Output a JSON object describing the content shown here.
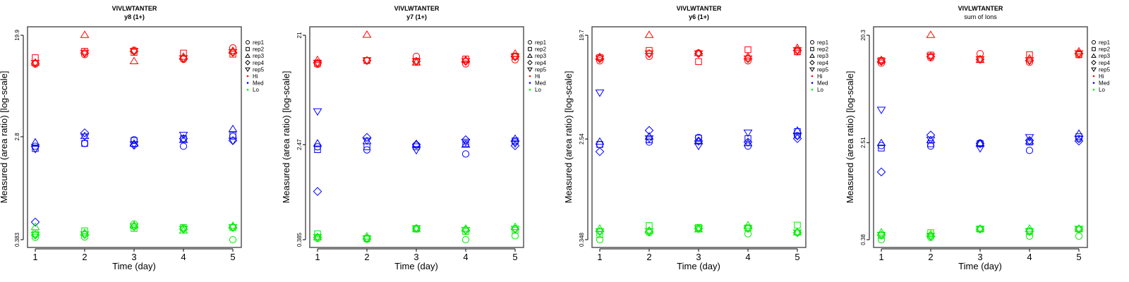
{
  "colors": {
    "Hi": "#ff0000",
    "Med": "#0000ff",
    "Lo": "#00ee00",
    "axis": "#000000",
    "box": "#555555"
  },
  "legend": {
    "reps": [
      "rep1",
      "rep2",
      "rep3",
      "rep4",
      "rep5"
    ],
    "levels": [
      "Hi",
      "Med",
      "Lo"
    ],
    "placement": "right"
  },
  "chart_data": [
    {
      "type": "scatter",
      "title": "VIVLWTANTER",
      "subtitle": "y8 (1+)",
      "xlabel": "Time (day)",
      "ylabel": "Measured (area ratio) [log-scale]",
      "yscale": "log",
      "x": [
        1,
        2,
        3,
        4,
        5
      ],
      "x_ticks": [
        "1",
        "2",
        "3",
        "4",
        "5"
      ],
      "y_ticks": [
        "0.383",
        "2.8",
        "19.9"
      ],
      "ylim": [
        0.383,
        19.9
      ],
      "series": {
        "Hi": {
          "rep1": [
            11.4,
            13.7,
            14.9,
            12.5,
            15.6
          ],
          "rep2": [
            12.9,
            14.6,
            14.3,
            14.1,
            13.8
          ],
          "rep3": [
            11.8,
            20.1,
            12.1,
            13.2,
            14.8
          ],
          "rep4": [
            11.6,
            14.1,
            14.6,
            12.7,
            14.3
          ],
          "rep5": [
            11.6,
            14.1,
            14.6,
            12.7,
            14.3
          ]
        },
        "Med": {
          "rep1": [
            2.33,
            2.46,
            2.64,
            2.33,
            2.82
          ],
          "rep2": [
            2.23,
            2.46,
            2.6,
            2.7,
            2.89
          ],
          "rep3": [
            2.52,
            2.85,
            2.46,
            2.64,
            3.26
          ],
          "rep4": [
            0.538,
            3.02,
            2.38,
            2.7,
            2.6
          ],
          "rep5": [
            2.2,
            2.8,
            2.41,
            2.89,
            2.58
          ]
        },
        "Lo": {
          "rep1": [
            0.401,
            0.404,
            0.519,
            0.476,
            0.383
          ],
          "rep2": [
            0.429,
            0.455,
            0.476,
            0.485,
            0.485
          ],
          "rep3": [
            0.492,
            0.439,
            0.508,
            0.459,
            0.503
          ],
          "rep4": [
            0.419,
            0.423,
            0.492,
            0.47,
            0.485
          ],
          "rep5": [
            0.419,
            0.423,
            0.492,
            0.47,
            0.485
          ]
        }
      }
    },
    {
      "type": "scatter",
      "title": "VIVLWTANTER",
      "subtitle": "y7 (1+)",
      "xlabel": "Time (day)",
      "ylabel": "Measured (area ratio) [log-scale]",
      "yscale": "log",
      "x": [
        1,
        2,
        3,
        4,
        5
      ],
      "x_ticks": [
        "1",
        "2",
        "3",
        "4",
        "5"
      ],
      "y_ticks": [
        "0.385",
        "2.47",
        "21"
      ],
      "ylim": [
        0.385,
        21
      ],
      "series": {
        "Hi": {
          "rep1": [
            11.9,
            12.8,
            13.9,
            12.0,
            13.0
          ],
          "rep2": [
            12.1,
            12.8,
            12.4,
            13.2,
            13.9
          ],
          "rep3": [
            13.0,
            21.3,
            12.4,
            13.0,
            14.7
          ],
          "rep4": [
            12.2,
            12.8,
            12.6,
            12.6,
            13.8
          ],
          "rep5": [
            12.2,
            12.8,
            12.6,
            12.6,
            13.8
          ]
        },
        "Med": {
          "rep1": [
            2.37,
            2.23,
            2.45,
            2.06,
            2.6
          ],
          "rep2": [
            2.24,
            2.37,
            2.37,
            2.52,
            2.66
          ],
          "rep3": [
            2.54,
            2.66,
            2.52,
            2.48,
            2.78
          ],
          "rep4": [
            0.989,
            2.85,
            2.48,
            2.72,
            2.42
          ],
          "rep5": [
            4.72,
            2.66,
            2.21,
            2.6,
            2.52
          ]
        },
        "Lo": {
          "rep1": [
            0.394,
            0.389,
            0.48,
            0.385,
            0.416
          ],
          "rep2": [
            0.432,
            0.394,
            0.474,
            0.452,
            0.463
          ],
          "rep3": [
            0.407,
            0.412,
            0.48,
            0.48,
            0.496
          ],
          "rep4": [
            0.403,
            0.394,
            0.48,
            0.463,
            0.474
          ],
          "rep5": [
            0.403,
            0.394,
            0.48,
            0.463,
            0.474
          ]
        }
      }
    },
    {
      "type": "scatter",
      "title": "VIVLWTANTER",
      "subtitle": "y6 (1+)",
      "xlabel": "Time (day)",
      "ylabel": "Measured (area ratio) [log-scale]",
      "yscale": "log",
      "x": [
        1,
        2,
        3,
        4,
        5
      ],
      "x_ticks": [
        "1",
        "2",
        "3",
        "4",
        "5"
      ],
      "y_ticks": [
        "0.348",
        "2.54",
        "19.7"
      ],
      "ylim": [
        0.348,
        19.7
      ],
      "series": {
        "Hi": {
          "rep1": [
            11.9,
            13.0,
            13.9,
            11.9,
            14.2
          ],
          "rep2": [
            12.7,
            14.6,
            11.7,
            14.8,
            14.2
          ],
          "rep3": [
            12.9,
            19.9,
            13.9,
            13.0,
            15.4
          ],
          "rep4": [
            12.4,
            13.7,
            13.7,
            12.4,
            14.6
          ],
          "rep5": [
            12.4,
            13.7,
            13.7,
            12.4,
            14.6
          ]
        },
        "Med": {
          "rep1": [
            2.28,
            2.39,
            2.62,
            2.21,
            2.71
          ],
          "rep2": [
            2.28,
            2.5,
            2.58,
            2.56,
            2.94
          ],
          "rep3": [
            2.42,
            2.68,
            2.44,
            2.35,
            3.01
          ],
          "rep4": [
            1.98,
            3.01,
            2.44,
            2.39,
            2.56
          ],
          "rep5": [
            6.32,
            2.56,
            2.21,
            2.87,
            2.68
          ]
        },
        "Lo": {
          "rep1": [
            0.348,
            0.4,
            0.429,
            0.391,
            0.4
          ],
          "rep2": [
            0.385,
            0.46,
            0.443,
            0.439,
            0.464
          ],
          "rep3": [
            0.435,
            0.419,
            0.429,
            0.464,
            0.404
          ],
          "rep4": [
            0.409,
            0.409,
            0.435,
            0.435,
            0.4
          ],
          "rep5": [
            0.409,
            0.409,
            0.435,
            0.435,
            0.4
          ]
        }
      }
    },
    {
      "type": "scatter",
      "title": "VIVLWTANTER",
      "subtitle": "sum of Ions",
      "xlabel": "Time (day)",
      "ylabel": "Measured (area ratio) [log-scale]",
      "yscale": "log",
      "x": [
        1,
        2,
        3,
        4,
        5
      ],
      "x_ticks": [
        "1",
        "2",
        "3",
        "4",
        "5"
      ],
      "y_ticks": [
        "0.38",
        "2.51",
        "20.3"
      ],
      "ylim": [
        0.38,
        20.3
      ],
      "series": {
        "Hi": {
          "rep1": [
            11.8,
            13.1,
            14.2,
            12.0,
            13.9
          ],
          "rep2": [
            12.4,
            13.8,
            12.7,
            13.9,
            13.9
          ],
          "rep3": [
            12.6,
            20.5,
            12.6,
            13.0,
            14.9
          ],
          "rep4": [
            12.2,
            13.4,
            12.7,
            12.4,
            14.2
          ],
          "rep5": [
            12.2,
            13.4,
            12.7,
            12.4,
            14.2
          ]
        },
        "Med": {
          "rep1": [
            2.37,
            2.35,
            2.5,
            2.16,
            2.71
          ],
          "rep2": [
            2.26,
            2.46,
            2.46,
            2.54,
            2.82
          ],
          "rep3": [
            2.5,
            2.65,
            2.48,
            2.59,
            3.0
          ],
          "rep4": [
            1.42,
            2.91,
            2.46,
            2.62,
            2.59
          ],
          "rep5": [
            4.74,
            2.65,
            2.24,
            2.78,
            2.69
          ]
        },
        "Lo": {
          "rep1": [
            0.38,
            0.398,
            0.467,
            0.407,
            0.407
          ],
          "rep2": [
            0.413,
            0.436,
            0.467,
            0.446,
            0.467
          ],
          "rep3": [
            0.44,
            0.426,
            0.473,
            0.473,
            0.473
          ],
          "rep4": [
            0.416,
            0.407,
            0.467,
            0.446,
            0.467
          ],
          "rep5": [
            0.416,
            0.407,
            0.467,
            0.446,
            0.467
          ]
        }
      }
    }
  ]
}
